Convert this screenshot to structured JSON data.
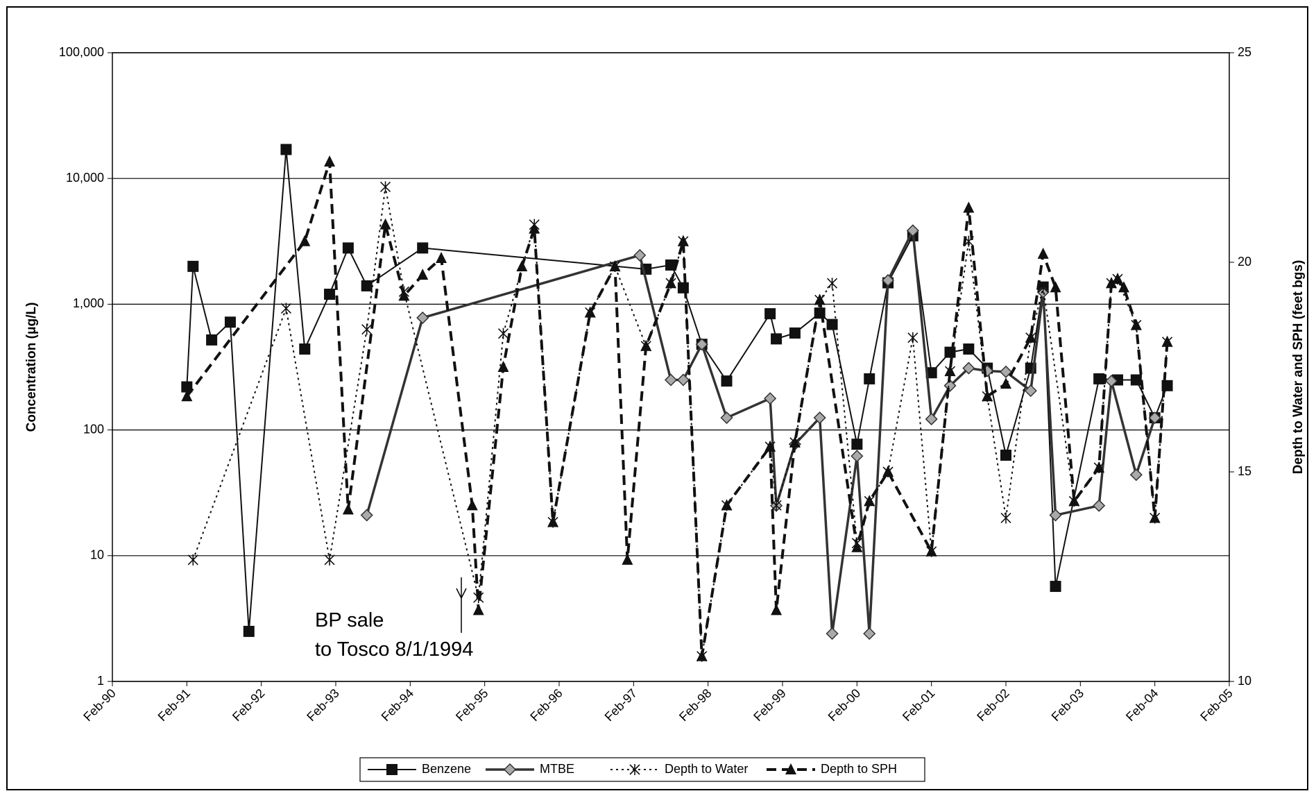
{
  "chart_data": {
    "type": "line",
    "ylabel": "Concentration (μg/L)",
    "y2label": "Depth to Water and SPH (feet bgs)",
    "yscale": "log",
    "grid": true,
    "legend": "bottom",
    "xlim": [
      "1990-02",
      "2005-02"
    ],
    "xticks": [
      {
        "value": "1990-02",
        "label": "Feb-90"
      },
      {
        "value": "1991-02",
        "label": "Feb-91"
      },
      {
        "value": "1992-02",
        "label": "Feb-92"
      },
      {
        "value": "1993-02",
        "label": "Feb-93"
      },
      {
        "value": "1994-02",
        "label": "Feb-94"
      },
      {
        "value": "1995-02",
        "label": "Feb-95"
      },
      {
        "value": "1996-02",
        "label": "Feb-96"
      },
      {
        "value": "1997-02",
        "label": "Feb-97"
      },
      {
        "value": "1998-02",
        "label": "Feb-98"
      },
      {
        "value": "1999-02",
        "label": "Feb-99"
      },
      {
        "value": "2000-02",
        "label": "Feb-00"
      },
      {
        "value": "2001-02",
        "label": "Feb-01"
      },
      {
        "value": "2002-02",
        "label": "Feb-02"
      },
      {
        "value": "2003-02",
        "label": "Feb-03"
      },
      {
        "value": "2004-02",
        "label": "Feb-04"
      },
      {
        "value": "2005-02",
        "label": "Feb-05"
      }
    ],
    "ylim": [
      1,
      100000
    ],
    "yticks": [
      1,
      10,
      100,
      {
        "value": 1000,
        "label": "1,000"
      },
      {
        "value": 10000,
        "label": "10,000"
      },
      {
        "value": 100000,
        "label": "100,000"
      }
    ],
    "y2lim": [
      10,
      25
    ],
    "y2ticks": [
      10,
      15,
      20,
      25
    ],
    "annotation": [
      "BP sale",
      "to Tosco 8/1/1994"
    ],
    "series": [
      {
        "name": "Benzene",
        "color": "#111111",
        "marker": "square",
        "line_style": "solid",
        "x": [
          "1991-02",
          "1991-03",
          "1991-06",
          "1991-09",
          "1991-12",
          "1992-06",
          "1992-09",
          "1993-01",
          "1993-04",
          "1993-07",
          "1994-04",
          "1997-04",
          "1997-08",
          "1997-10",
          "1998-01",
          "1998-05",
          "1998-12",
          "1999-01",
          "1999-04",
          "1999-08",
          "1999-10",
          "2000-02",
          "2000-04",
          "2000-07",
          "2000-11",
          "2001-02",
          "2001-05",
          "2001-08",
          "2001-11",
          "2002-02",
          "2002-06",
          "2002-08",
          "2002-10",
          "2003-05",
          "2003-08",
          "2003-11",
          "2004-02",
          "2004-04"
        ],
        "values": [
          220,
          2000,
          520,
          720,
          2.5,
          17000,
          440,
          1200,
          2800,
          1400,
          2800,
          1900,
          2050,
          1350,
          480,
          245,
          840,
          530,
          590,
          850,
          690,
          77,
          255,
          1480,
          3500,
          285,
          415,
          440,
          310,
          63,
          310,
          1370,
          5.7,
          255,
          250,
          250,
          125,
          225
        ]
      },
      {
        "name": "MTBE",
        "color": "#333333",
        "marker": "diamond",
        "line_style": "thick",
        "x": [
          "1993-07",
          "1994-04",
          "1997-03",
          "1997-08",
          "1997-10",
          "1998-01",
          "1998-05",
          "1998-12",
          "1999-01",
          "1999-04",
          "1999-08",
          "1999-10",
          "2000-02",
          "2000-04",
          "2000-07",
          "2000-11",
          "2001-02",
          "2001-05",
          "2001-08",
          "2001-11",
          "2002-02",
          "2002-06",
          "2002-08",
          "2002-10",
          "2003-05",
          "2003-07",
          "2003-11",
          "2004-02"
        ],
        "values": [
          21,
          780,
          2450,
          250,
          250,
          480,
          125,
          178,
          25,
          77,
          125,
          2.4,
          62,
          2.4,
          1550,
          3850,
          122,
          225,
          310,
          295,
          290,
          205,
          1250,
          21,
          25,
          245,
          44,
          125
        ]
      },
      {
        "name": "Depth to Water",
        "color": "#111111",
        "marker": "asterisk",
        "line_style": "dotted",
        "axis": "y2",
        "x": [
          "1991-03",
          "1992-06",
          "1993-01",
          "1993-07",
          "1993-10",
          "1994-01",
          "1995-01",
          "1995-05",
          "1995-10",
          "1996-01",
          "1996-07",
          "1996-11",
          "1997-04",
          "1997-08",
          "1997-10",
          "1998-01",
          "1998-05",
          "1998-12",
          "1999-01",
          "1999-04",
          "1999-08",
          "1999-10",
          "2000-02",
          "2000-04",
          "2000-07",
          "2000-11",
          "2001-02",
          "2001-05",
          "2001-08",
          "2001-11",
          "2002-02",
          "2002-06",
          "2002-08",
          "2003-01",
          "2003-05",
          "2003-07",
          "2003-08",
          "2003-11",
          "2004-02",
          "2004-04"
        ],
        "values": [
          12.9,
          18.9,
          12.9,
          18.4,
          21.8,
          19.3,
          12.0,
          18.3,
          20.9,
          13.8,
          18.8,
          19.9,
          18.0,
          19.5,
          20.5,
          10.6,
          14.2,
          15.6,
          14.2,
          15.7,
          19.1,
          19.5,
          13.3,
          14.3,
          15.0,
          18.2,
          13.1,
          17.4,
          20.5,
          16.8,
          13.9,
          18.2,
          19.4,
          14.3,
          15.1,
          19.5,
          19.6,
          18.5,
          13.9,
          18.1
        ]
      },
      {
        "name": "Depth to SPH",
        "color": "#111111",
        "marker": "triangle",
        "line_style": "dashed",
        "axis": "y2",
        "x": [
          "1991-02",
          "1992-09",
          "1993-01",
          "1993-04",
          "1993-10",
          "1994-01",
          "1994-04",
          "1994-07",
          "1994-12",
          "1995-01",
          "1995-05",
          "1995-08",
          "1995-10",
          "1996-01",
          "1996-07",
          "1996-11",
          "1997-01",
          "1997-04",
          "1997-08",
          "1997-10",
          "1998-01",
          "1998-05",
          "1998-12",
          "1999-01",
          "1999-04",
          "1999-08",
          "2000-02",
          "2000-04",
          "2000-07",
          "2001-02",
          "2001-05",
          "2001-08",
          "2001-11",
          "2002-02",
          "2002-06",
          "2002-08",
          "2002-10",
          "2003-01",
          "2003-05",
          "2003-07",
          "2003-08",
          "2003-09",
          "2003-11",
          "2004-02",
          "2004-04"
        ],
        "values": [
          16.8,
          20.5,
          22.4,
          14.1,
          20.9,
          19.2,
          19.7,
          20.1,
          14.2,
          11.7,
          17.5,
          19.9,
          20.8,
          13.8,
          18.8,
          19.9,
          12.9,
          18.0,
          19.5,
          20.5,
          10.6,
          14.2,
          15.6,
          11.7,
          15.7,
          19.1,
          13.2,
          14.3,
          15.0,
          13.1,
          17.4,
          21.3,
          16.8,
          17.1,
          18.2,
          20.2,
          19.4,
          14.3,
          15.1,
          19.5,
          19.6,
          19.4,
          18.5,
          13.9,
          18.1
        ]
      }
    ]
  }
}
